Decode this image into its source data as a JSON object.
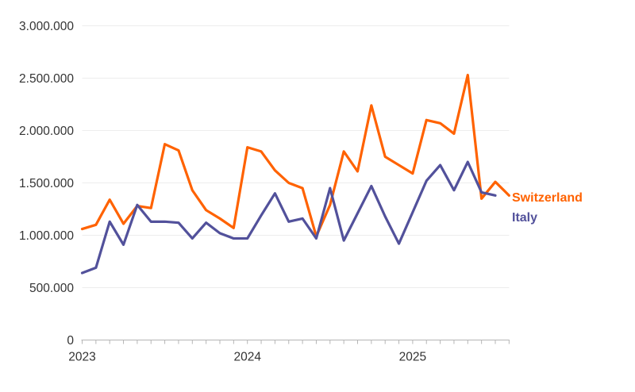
{
  "page": {
    "background": "#FFFFFF"
  },
  "chart_data": {
    "type": "line",
    "title": "",
    "x_unit": "month",
    "x_start": "2023-01",
    "months_span": 32,
    "x_year_ticks": [
      {
        "label": "2023",
        "month_index": 0
      },
      {
        "label": "2024",
        "month_index": 12
      },
      {
        "label": "2025",
        "month_index": 24
      }
    ],
    "y_axis": {
      "min": 0,
      "max": 3000000,
      "tick_interval": 500000,
      "tick_labels": [
        "0",
        "500.000",
        "1.000.000",
        "1.500.000",
        "2.000.000",
        "2.500.000",
        "3.000.000"
      ]
    },
    "grid": "horizontal",
    "legend_position": "right-of-line-ends",
    "style": {
      "grid_color": "#EDEDED",
      "axis_color": "#B5B5B5",
      "text_color": "#333333",
      "line_width": 3.2
    },
    "series": [
      {
        "name": "Switzerland",
        "color": "#FF6200",
        "start_month_index": 0,
        "values": [
          1060000,
          1100000,
          1340000,
          1110000,
          1280000,
          1260000,
          1870000,
          1810000,
          1430000,
          1240000,
          1160000,
          1070000,
          1840000,
          1800000,
          1620000,
          1500000,
          1450000,
          990000,
          1290000,
          1800000,
          1610000,
          2240000,
          1750000,
          1670000,
          1590000,
          2100000,
          2070000,
          1970000,
          2530000,
          1350000,
          1510000,
          1380000
        ]
      },
      {
        "name": "Italy",
        "color": "#52519B",
        "start_month_index": 0,
        "values": [
          640000,
          690000,
          1130000,
          910000,
          1290000,
          1130000,
          1130000,
          1120000,
          970000,
          1120000,
          1020000,
          970000,
          970000,
          1190000,
          1400000,
          1130000,
          1160000,
          970000,
          1450000,
          950000,
          1210000,
          1470000,
          1180000,
          920000,
          1220000,
          1520000,
          1670000,
          1430000,
          1700000,
          1410000,
          1380000
        ]
      }
    ]
  }
}
